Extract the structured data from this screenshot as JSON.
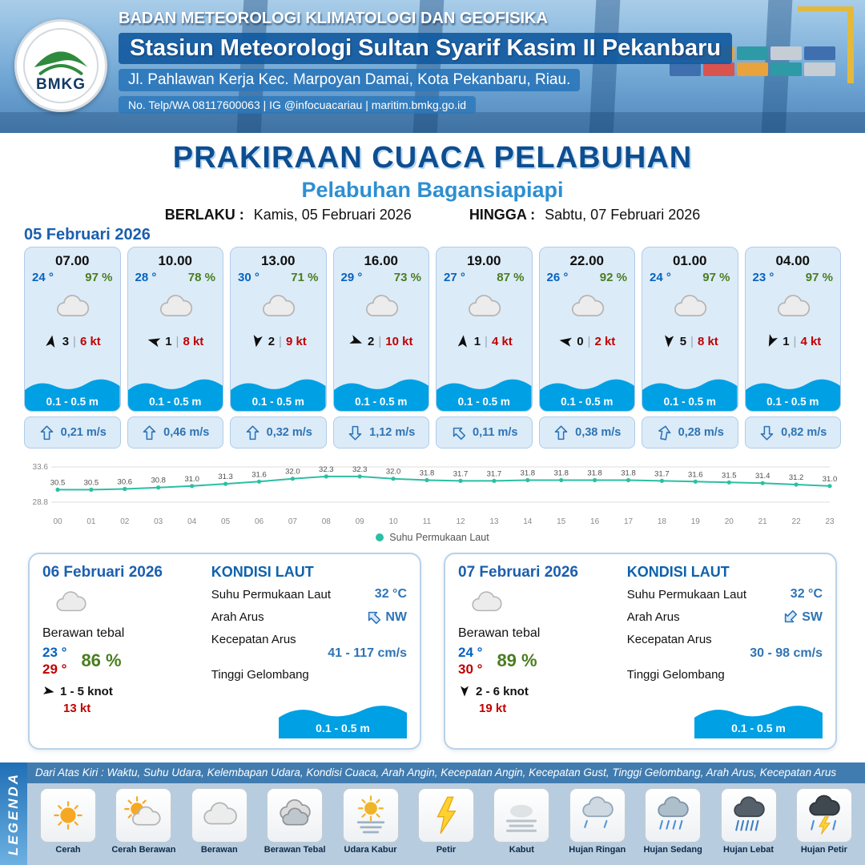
{
  "header": {
    "logo_text": "BMKG",
    "agency": "BADAN METEOROLOGI KLIMATOLOGI DAN GEOFISIKA",
    "station": "Stasiun Meteorologi Sultan Syarif Kasim II Pekanbaru",
    "address": "Jl. Pahlawan Kerja Kec. Marpoyan Damai, Kota Pekanbaru, Riau.",
    "contact": "No. Telp/WA 08117600063 | IG @infocuacariau | maritim.bmkg.go.id"
  },
  "title": {
    "main": "PRAKIRAAN CUACA PELABUHAN",
    "subtitle": "Pelabuhan Bagansiapiapi",
    "berlaku_label": "BERLAKU :",
    "berlaku_value": "Kamis, 05 Februari 2026",
    "hingga_label": "HINGGA :",
    "hingga_value": "Sabtu, 07 Februari 2026"
  },
  "forecast": {
    "date": "05 Februari 2026",
    "wind_sep": "|",
    "cards": [
      {
        "time": "07.00",
        "temp": "24 °",
        "humidity": "97 %",
        "wind_dir_deg": 10,
        "wind_value": "3",
        "gust": "6 kt",
        "wave": "0.1 - 0.5 m",
        "current_dir_deg": 0,
        "current_speed": "0,21 m/s"
      },
      {
        "time": "10.00",
        "temp": "28 °",
        "humidity": "78 %",
        "wind_dir_deg": 285,
        "wind_value": "1",
        "gust": "8 kt",
        "wave": "0.1 - 0.5 m",
        "current_dir_deg": 0,
        "current_speed": "0,46 m/s"
      },
      {
        "time": "13.00",
        "temp": "30 °",
        "humidity": "71 %",
        "wind_dir_deg": 190,
        "wind_value": "2",
        "gust": "9 kt",
        "wave": "0.1 - 0.5 m",
        "current_dir_deg": 0,
        "current_speed": "0,32 m/s"
      },
      {
        "time": "16.00",
        "temp": "29 °",
        "humidity": "73 %",
        "wind_dir_deg": 110,
        "wind_value": "2",
        "gust": "10 kt",
        "wave": "0.1 - 0.5 m",
        "current_dir_deg": 180,
        "current_speed": "1,12 m/s"
      },
      {
        "time": "19.00",
        "temp": "27 °",
        "humidity": "87 %",
        "wind_dir_deg": 5,
        "wind_value": "1",
        "gust": "4 kt",
        "wave": "0.1 - 0.5 m",
        "current_dir_deg": 315,
        "current_speed": "0,11 m/s"
      },
      {
        "time": "22.00",
        "temp": "26 °",
        "humidity": "92 %",
        "wind_dir_deg": 280,
        "wind_value": "0",
        "gust": "2 kt",
        "wave": "0.1 - 0.5 m",
        "current_dir_deg": 0,
        "current_speed": "0,38 m/s"
      },
      {
        "time": "01.00",
        "temp": "24 °",
        "humidity": "97 %",
        "wind_dir_deg": 185,
        "wind_value": "5",
        "gust": "8 kt",
        "wave": "0.1 - 0.5 m",
        "current_dir_deg": 10,
        "current_speed": "0,28 m/s"
      },
      {
        "time": "04.00",
        "temp": "23 °",
        "humidity": "97 %",
        "wind_dir_deg": 205,
        "wind_value": "1",
        "gust": "4 kt",
        "wave": "0.1 - 0.5 m",
        "current_dir_deg": 180,
        "current_speed": "0,82 m/s"
      }
    ]
  },
  "chart_data": {
    "type": "line",
    "title": "Suhu Permukaan Laut",
    "series_name": "Suhu Permukaan Laut",
    "x": [
      "00",
      "01",
      "02",
      "03",
      "04",
      "05",
      "06",
      "07",
      "08",
      "09",
      "10",
      "11",
      "12",
      "13",
      "14",
      "15",
      "16",
      "17",
      "18",
      "19",
      "20",
      "21",
      "22",
      "23"
    ],
    "values": [
      30.5,
      30.5,
      30.6,
      30.8,
      31.0,
      31.3,
      31.6,
      32.0,
      32.3,
      32.3,
      32.0,
      31.8,
      31.7,
      31.7,
      31.8,
      31.8,
      31.8,
      31.8,
      31.7,
      31.6,
      31.5,
      31.4,
      31.2,
      31.0
    ],
    "ylim": [
      28.8,
      33.6
    ],
    "xlabel": "",
    "ylabel": "",
    "color": "#2bbfa4",
    "grid": true,
    "legend_position": "bottom"
  },
  "daily": [
    {
      "date": "06 Februari 2026",
      "condition": "Berawan tebal",
      "temp_min": "23 °",
      "temp_max": "29 °",
      "humidity": "86 %",
      "wind_dir_deg": 100,
      "wind_range": "1 - 5 knot",
      "gust": "13 kt",
      "sea": {
        "title": "KONDISI LAUT",
        "sst_label": "Suhu Permukaan Laut",
        "sst": "32 °C",
        "current_dir_label": "Arah Arus",
        "current_dir": "NW",
        "current_dir_deg": 315,
        "current_speed_label": "Kecepatan Arus",
        "current_speed": "41 - 117 cm/s",
        "wave_label": "Tinggi Gelombang",
        "wave": "0.1 - 0.5 m"
      }
    },
    {
      "date": "07 Februari 2026",
      "condition": "Berawan tebal",
      "temp_min": "24 °",
      "temp_max": "30 °",
      "humidity": "89 %",
      "wind_dir_deg": 180,
      "wind_range": "2 - 6 knot",
      "gust": "19 kt",
      "sea": {
        "title": "KONDISI LAUT",
        "sst_label": "Suhu Permukaan Laut",
        "sst": "32 °C",
        "current_dir_label": "Arah Arus",
        "current_dir": "SW",
        "current_dir_deg": 225,
        "current_speed_label": "Kecepatan Arus",
        "current_speed": "30 - 98 cm/s",
        "wave_label": "Tinggi Gelombang",
        "wave": "0.1 - 0.5 m"
      }
    }
  ],
  "legend": {
    "title": "LEGENDA",
    "description": "Dari Atas Kiri : Waktu, Suhu Udara, Kelembapan Udara, Kondisi Cuaca, Arah Angin, Kecepatan Angin, Kecepatan Gust, Tinggi Gelombang, Arah Arus, Kecepatan Arus",
    "items": [
      {
        "label": "Cerah",
        "icon": "sun"
      },
      {
        "label": "Cerah Berawan",
        "icon": "sun-cloud"
      },
      {
        "label": "Berawan",
        "icon": "cloud"
      },
      {
        "label": "Berawan Tebal",
        "icon": "cloud-thick"
      },
      {
        "label": "Udara Kabur",
        "icon": "haze"
      },
      {
        "label": "Petir",
        "icon": "lightning"
      },
      {
        "label": "Kabut",
        "icon": "fog"
      },
      {
        "label": "Hujan Ringan",
        "icon": "rain-light"
      },
      {
        "label": "Hujan Sedang",
        "icon": "rain-medium"
      },
      {
        "label": "Hujan Lebat",
        "icon": "rain-heavy"
      },
      {
        "label": "Hujan Petir",
        "icon": "storm"
      }
    ]
  }
}
